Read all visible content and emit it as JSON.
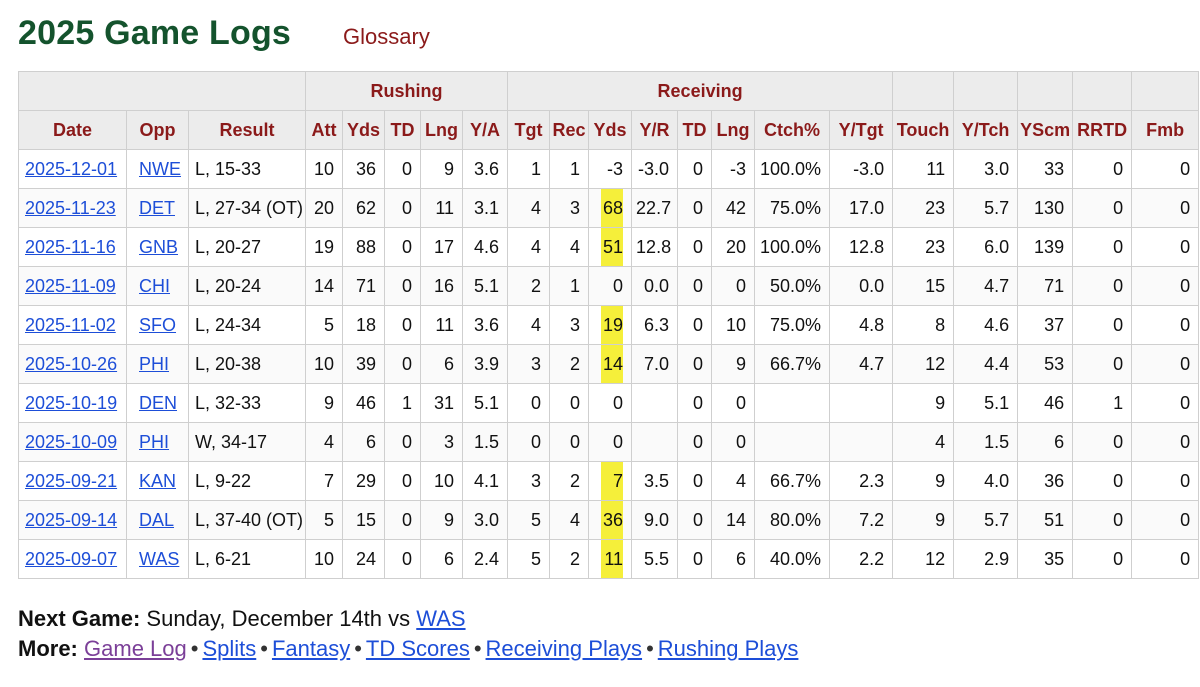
{
  "page": {
    "title": "2025 Game Logs",
    "glossary_label": "Glossary"
  },
  "groups": {
    "rushing": "Rushing",
    "receiving": "Receiving"
  },
  "headers": [
    "Date",
    "Opp",
    "Result",
    "Att",
    "Yds",
    "TD",
    "Lng",
    "Y/A",
    "Tgt",
    "Rec",
    "Yds",
    "Y/R",
    "TD",
    "Lng",
    "Ctch%",
    "Y/Tgt",
    "Touch",
    "Y/Tch",
    "YScm",
    "RRTD",
    "Fmb"
  ],
  "rows": [
    [
      "2025-12-01",
      "NWE",
      "L, 15-33",
      "10",
      "36",
      "0",
      "9",
      "3.6",
      "1",
      "1",
      "-3",
      "-3.0",
      "0",
      "-3",
      "100.0%",
      "-3.0",
      "11",
      "3.0",
      "33",
      "0",
      "0"
    ],
    [
      "2025-11-23",
      "DET",
      "L, 27-34 (OT)",
      "20",
      "62",
      "0",
      "11",
      "3.1",
      "4",
      "3",
      "68",
      "22.7",
      "0",
      "42",
      "75.0%",
      "17.0",
      "23",
      "5.7",
      "130",
      "0",
      "0"
    ],
    [
      "2025-11-16",
      "GNB",
      "L, 20-27",
      "19",
      "88",
      "0",
      "17",
      "4.6",
      "4",
      "4",
      "51",
      "12.8",
      "0",
      "20",
      "100.0%",
      "12.8",
      "23",
      "6.0",
      "139",
      "0",
      "0"
    ],
    [
      "2025-11-09",
      "CHI",
      "L, 20-24",
      "14",
      "71",
      "0",
      "16",
      "5.1",
      "2",
      "1",
      "0",
      "0.0",
      "0",
      "0",
      "50.0%",
      "0.0",
      "15",
      "4.7",
      "71",
      "0",
      "0"
    ],
    [
      "2025-11-02",
      "SFO",
      "L, 24-34",
      "5",
      "18",
      "0",
      "11",
      "3.6",
      "4",
      "3",
      "19",
      "6.3",
      "0",
      "10",
      "75.0%",
      "4.8",
      "8",
      "4.6",
      "37",
      "0",
      "0"
    ],
    [
      "2025-10-26",
      "PHI",
      "L, 20-38",
      "10",
      "39",
      "0",
      "6",
      "3.9",
      "3",
      "2",
      "14",
      "7.0",
      "0",
      "9",
      "66.7%",
      "4.7",
      "12",
      "4.4",
      "53",
      "0",
      "0"
    ],
    [
      "2025-10-19",
      "DEN",
      "L, 32-33",
      "9",
      "46",
      "1",
      "31",
      "5.1",
      "0",
      "0",
      "0",
      "",
      "0",
      "0",
      "",
      "",
      "9",
      "5.1",
      "46",
      "1",
      "0"
    ],
    [
      "2025-10-09",
      "PHI",
      "W, 34-17",
      "4",
      "6",
      "0",
      "3",
      "1.5",
      "0",
      "0",
      "0",
      "",
      "0",
      "0",
      "",
      "",
      "4",
      "1.5",
      "6",
      "0",
      "0"
    ],
    [
      "2025-09-21",
      "KAN",
      "L, 9-22",
      "7",
      "29",
      "0",
      "10",
      "4.1",
      "3",
      "2",
      "7",
      "3.5",
      "0",
      "4",
      "66.7%",
      "2.3",
      "9",
      "4.0",
      "36",
      "0",
      "0"
    ],
    [
      "2025-09-14",
      "DAL",
      "L, 37-40 (OT)",
      "5",
      "15",
      "0",
      "9",
      "3.0",
      "5",
      "4",
      "36",
      "9.0",
      "0",
      "14",
      "80.0%",
      "7.2",
      "9",
      "5.7",
      "51",
      "0",
      "0"
    ],
    [
      "2025-09-07",
      "WAS",
      "L, 6-21",
      "10",
      "24",
      "0",
      "6",
      "2.4",
      "5",
      "2",
      "11",
      "5.5",
      "0",
      "6",
      "40.0%",
      "2.2",
      "12",
      "2.9",
      "35",
      "0",
      "0"
    ]
  ],
  "highlighted_rows": [
    1,
    2,
    4,
    5,
    8,
    9,
    10
  ],
  "colors": {
    "title": "#14532d",
    "header_text": "#8b1a1a",
    "link": "#1d4ed8",
    "highlight": "#f5ef3a"
  },
  "footer": {
    "next_game_label": "Next Game:",
    "next_game_text": "Sunday, December 14th vs",
    "next_game_opp": "WAS",
    "more_label": "More:",
    "links": [
      "Game Log",
      "Splits",
      "Fantasy",
      "TD Scores",
      "Receiving Plays",
      "Rushing Plays"
    ],
    "separator": "•"
  }
}
